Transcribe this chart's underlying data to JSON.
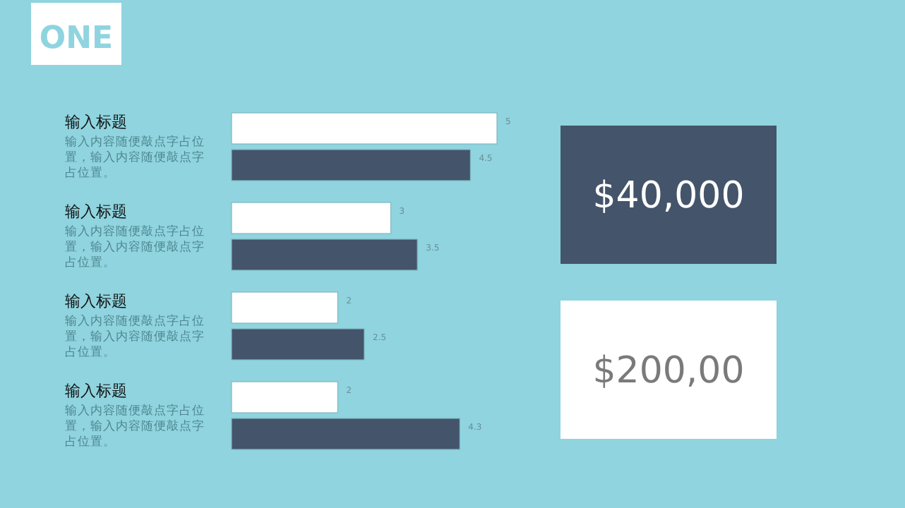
{
  "chart_data": [
    {
      "type": "bar",
      "orientation": "horizontal",
      "title": "ONE",
      "categories": [
        "输入标题",
        "输入标题",
        "输入标题",
        "输入标题"
      ],
      "annotations": [
        "输入内容随便敲点字占位置，输入内容随便敲点字占位置。",
        "输入内容随便敲点字占位置，输入内容随便敲点字占位置。",
        "输入内容随便敲点字占位置，输入内容随便敲点字占位置。",
        "输入内容随便敲点字占位置，输入内容随便敲点字占位置。"
      ],
      "series": [
        {
          "color": "#ffffff",
          "values": [
            5,
            3,
            2,
            2
          ]
        },
        {
          "color": "#44546a",
          "values": [
            4.5,
            3.5,
            2.5,
            4.3
          ]
        }
      ],
      "data_labels": true
    },
    {
      "type": "other",
      "annotations": [
        "$40,000",
        "$200,00"
      ],
      "colors": [
        "#44546a",
        "#ffffff"
      ]
    }
  ]
}
